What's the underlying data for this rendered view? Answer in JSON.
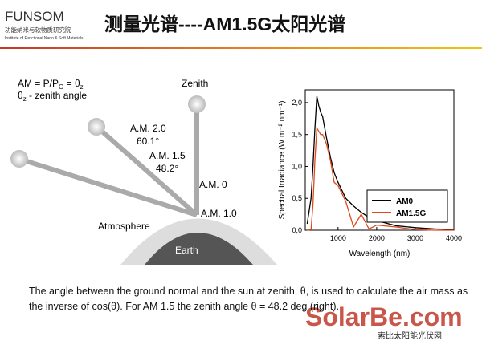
{
  "header": {
    "logo": "FUNSOM",
    "logo_cn": "功能纳米与软物质研究院",
    "logo_en": "Institute of Functional Nano & Soft Materials",
    "title": "测量光谱----AM1.5G太阳光谱"
  },
  "diagram": {
    "formula": [
      "AM = P/P",
      "O",
      " = θ",
      "z"
    ],
    "angle_note": [
      "θ",
      "z",
      " - zenith angle"
    ],
    "labels": {
      "zenith": "Zenith",
      "am20": "A.M. 2.0",
      "a601": "60.1°",
      "am15": "A.M. 1.5",
      "a482": "48.2°",
      "am0": "A.M. 0",
      "am10": "A.M. 1.0",
      "atmosphere": "Atmosphere",
      "earth": "Earth"
    }
  },
  "chart_data": {
    "type": "line",
    "xlabel": "Wavelength (nm)",
    "ylabel": "Spectral Irradiance (W m⁻² nm⁻¹)",
    "x": [
      200,
      300,
      350,
      400,
      450,
      500,
      550,
      600,
      700,
      800,
      900,
      1000,
      1200,
      1400,
      1600,
      1800,
      2000,
      2500,
      3000,
      3500,
      4000
    ],
    "series": [
      {
        "name": "AM0",
        "color": "#000000",
        "values": [
          0.1,
          0.5,
          1.0,
          1.6,
          2.1,
          1.95,
          1.85,
          1.78,
          1.45,
          1.15,
          0.9,
          0.75,
          0.5,
          0.38,
          0.28,
          0.2,
          0.15,
          0.07,
          0.04,
          0.02,
          0.01
        ]
      },
      {
        "name": "AM1.5G",
        "color": "#e0481a",
        "values": [
          0,
          0.01,
          0.4,
          1.1,
          1.6,
          1.55,
          1.5,
          1.5,
          1.35,
          1.1,
          0.75,
          0.7,
          0.45,
          0.05,
          0.25,
          0.02,
          0.08,
          0.05,
          0.01,
          0,
          0
        ]
      }
    ],
    "xlim": [
      150,
      4000
    ],
    "xticks": [
      1000,
      2000,
      3000,
      4000
    ],
    "ylim": [
      0,
      2.2
    ],
    "yticks": [
      {
        "value": 0,
        "label": "0,0"
      },
      {
        "value": 0.5,
        "label": "0,5"
      },
      {
        "value": 1,
        "label": "1,0"
      },
      {
        "value": 1.5,
        "label": "1,5"
      },
      {
        "value": 2,
        "label": "2,0"
      }
    ],
    "legend": "lower-right"
  },
  "caption": "The angle between the ground normal and the sun at zenith, θ, is used to calculate the air mass as the inverse of cos(θ). For AM 1.5 the zenith angle θ = 48.2 deg (right).",
  "watermark": {
    "brand": "SolarBe.com",
    "cn": "索比太阳能光伏网"
  }
}
